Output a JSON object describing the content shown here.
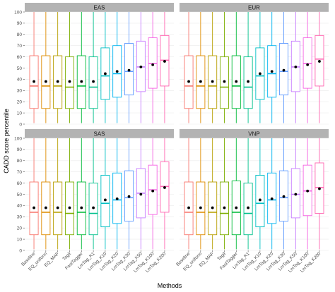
{
  "chart_data": {
    "type": "boxplot",
    "xlabel": "Methods",
    "ylabel": "CADD score percentile",
    "ylim": [
      0,
      100
    ],
    "yticks": [
      0,
      10,
      20,
      30,
      40,
      50,
      60,
      70,
      80,
      90,
      100
    ],
    "grid": true,
    "categories": [
      "Baseline",
      "EQ_uniform",
      "EQ_MAF",
      "Tagit",
      "FastTagger",
      "LmTag_K1",
      "LmTag_K10",
      "LmTag_K20",
      "LmTag_K30",
      "LmTag_K50",
      "LmTag_K100",
      "LmTag_K200"
    ],
    "colors": [
      "#F8766D",
      "#DE8C00",
      "#B79F00",
      "#7CAE00",
      "#00BA38",
      "#00C08B",
      "#00BFC4",
      "#00B4F0",
      "#619CFF",
      "#C77CFF",
      "#F564E3",
      "#FF64B0"
    ],
    "panels": [
      {
        "label": "EAS",
        "boxes": [
          {
            "min": 1,
            "q1": 14,
            "median": 34,
            "q3": 61,
            "max": 100,
            "mean": 38
          },
          {
            "min": 1,
            "q1": 14,
            "median": 34,
            "q3": 61,
            "max": 100,
            "mean": 38
          },
          {
            "min": 1,
            "q1": 14,
            "median": 34,
            "q3": 61,
            "max": 100,
            "mean": 38
          },
          {
            "min": 1,
            "q1": 14,
            "median": 33,
            "q3": 60,
            "max": 100,
            "mean": 38
          },
          {
            "min": 1,
            "q1": 14,
            "median": 34,
            "q3": 61,
            "max": 100,
            "mean": 38
          },
          {
            "min": 1,
            "q1": 14,
            "median": 33,
            "q3": 60,
            "max": 100,
            "mean": 38
          },
          {
            "min": 1,
            "q1": 22,
            "median": 43,
            "q3": 68,
            "max": 100,
            "mean": 45
          },
          {
            "min": 1,
            "q1": 24,
            "median": 45,
            "q3": 70,
            "max": 100,
            "mean": 47
          },
          {
            "min": 1,
            "q1": 26,
            "median": 47,
            "q3": 72,
            "max": 100,
            "mean": 48
          },
          {
            "min": 1,
            "q1": 29,
            "median": 51,
            "q3": 74,
            "max": 100,
            "mean": 51
          },
          {
            "min": 1,
            "q1": 32,
            "median": 54,
            "q3": 77,
            "max": 100,
            "mean": 53
          },
          {
            "min": 1,
            "q1": 34,
            "median": 57,
            "q3": 79,
            "max": 100,
            "mean": 56
          }
        ]
      },
      {
        "label": "EUR",
        "boxes": [
          {
            "min": 1,
            "q1": 14,
            "median": 34,
            "q3": 61,
            "max": 100,
            "mean": 38
          },
          {
            "min": 1,
            "q1": 14,
            "median": 34,
            "q3": 61,
            "max": 100,
            "mean": 38
          },
          {
            "min": 1,
            "q1": 14,
            "median": 34,
            "q3": 61,
            "max": 100,
            "mean": 38
          },
          {
            "min": 1,
            "q1": 14,
            "median": 33,
            "q3": 60,
            "max": 100,
            "mean": 38
          },
          {
            "min": 1,
            "q1": 14,
            "median": 34,
            "q3": 61,
            "max": 100,
            "mean": 38
          },
          {
            "min": 1,
            "q1": 14,
            "median": 33,
            "q3": 60,
            "max": 100,
            "mean": 38
          },
          {
            "min": 1,
            "q1": 22,
            "median": 43,
            "q3": 68,
            "max": 100,
            "mean": 45
          },
          {
            "min": 1,
            "q1": 24,
            "median": 45,
            "q3": 70,
            "max": 100,
            "mean": 47
          },
          {
            "min": 1,
            "q1": 26,
            "median": 47,
            "q3": 72,
            "max": 100,
            "mean": 48
          },
          {
            "min": 1,
            "q1": 29,
            "median": 51,
            "q3": 74,
            "max": 100,
            "mean": 51
          },
          {
            "min": 1,
            "q1": 32,
            "median": 54,
            "q3": 77,
            "max": 100,
            "mean": 53
          },
          {
            "min": 1,
            "q1": 34,
            "median": 58,
            "q3": 79,
            "max": 100,
            "mean": 56
          }
        ]
      },
      {
        "label": "SAS",
        "boxes": [
          {
            "min": 1,
            "q1": 14,
            "median": 34,
            "q3": 61,
            "max": 100,
            "mean": 38
          },
          {
            "min": 1,
            "q1": 14,
            "median": 34,
            "q3": 61,
            "max": 100,
            "mean": 38
          },
          {
            "min": 1,
            "q1": 14,
            "median": 34,
            "q3": 61,
            "max": 100,
            "mean": 38
          },
          {
            "min": 1,
            "q1": 14,
            "median": 33,
            "q3": 61,
            "max": 100,
            "mean": 38
          },
          {
            "min": 1,
            "q1": 14,
            "median": 34,
            "q3": 61,
            "max": 100,
            "mean": 38
          },
          {
            "min": 1,
            "q1": 14,
            "median": 33,
            "q3": 60,
            "max": 100,
            "mean": 38
          },
          {
            "min": 1,
            "q1": 21,
            "median": 42,
            "q3": 67,
            "max": 100,
            "mean": 45
          },
          {
            "min": 1,
            "q1": 24,
            "median": 45,
            "q3": 69,
            "max": 100,
            "mean": 46
          },
          {
            "min": 1,
            "q1": 26,
            "median": 47,
            "q3": 71,
            "max": 100,
            "mean": 48
          },
          {
            "min": 1,
            "q1": 29,
            "median": 51,
            "q3": 73,
            "max": 100,
            "mean": 50
          },
          {
            "min": 1,
            "q1": 32,
            "median": 54,
            "q3": 76,
            "max": 100,
            "mean": 53
          },
          {
            "min": 1,
            "q1": 34,
            "median": 57,
            "q3": 79,
            "max": 100,
            "mean": 56
          }
        ]
      },
      {
        "label": "VNP",
        "boxes": [
          {
            "min": 1,
            "q1": 14,
            "median": 34,
            "q3": 61,
            "max": 100,
            "mean": 38
          },
          {
            "min": 1,
            "q1": 14,
            "median": 34,
            "q3": 61,
            "max": 100,
            "mean": 38
          },
          {
            "min": 1,
            "q1": 14,
            "median": 34,
            "q3": 61,
            "max": 100,
            "mean": 38
          },
          {
            "min": 1,
            "q1": 14,
            "median": 33,
            "q3": 61,
            "max": 100,
            "mean": 38
          },
          {
            "min": 1,
            "q1": 14,
            "median": 34,
            "q3": 62,
            "max": 100,
            "mean": 38
          },
          {
            "min": 1,
            "q1": 14,
            "median": 33,
            "q3": 60,
            "max": 100,
            "mean": 38
          },
          {
            "min": 1,
            "q1": 21,
            "median": 42,
            "q3": 67,
            "max": 100,
            "mean": 45
          },
          {
            "min": 1,
            "q1": 24,
            "median": 45,
            "q3": 69,
            "max": 100,
            "mean": 46
          },
          {
            "min": 1,
            "q1": 26,
            "median": 47,
            "q3": 71,
            "max": 100,
            "mean": 48
          },
          {
            "min": 1,
            "q1": 29,
            "median": 50,
            "q3": 73,
            "max": 100,
            "mean": 50
          },
          {
            "min": 1,
            "q1": 31,
            "median": 53,
            "q3": 76,
            "max": 100,
            "mean": 53
          },
          {
            "min": 1,
            "q1": 33,
            "median": 56,
            "q3": 78,
            "max": 100,
            "mean": 55
          }
        ]
      }
    ]
  }
}
